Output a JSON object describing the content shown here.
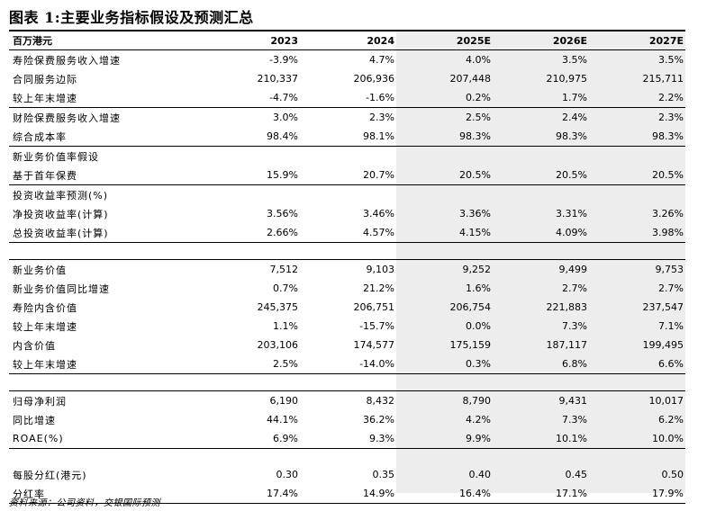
{
  "title": "图表 1:主要业务指标假设及预测汇总",
  "header": {
    "label": "百万港元",
    "years": [
      "2023",
      "2024",
      "2025E",
      "2026E",
      "2027E"
    ]
  },
  "rows": [
    {
      "label": "寿险保费服务收入增速",
      "values": [
        "-3.9%",
        "4.7%",
        "4.0%",
        "3.5%",
        "3.5%"
      ],
      "border": false
    },
    {
      "label": "合同服务边际",
      "values": [
        "210,337",
        "206,936",
        "207,448",
        "210,975",
        "215,711"
      ],
      "border": false
    },
    {
      "label": "较上年末增速",
      "values": [
        "-4.7%",
        "-1.6%",
        "0.2%",
        "1.7%",
        "2.2%"
      ],
      "border": false
    },
    {
      "label": "财险保费服务收入增速",
      "values": [
        "3.0%",
        "2.3%",
        "2.5%",
        "2.4%",
        "2.3%"
      ],
      "border": true
    },
    {
      "label": "综合成本率",
      "values": [
        "98.4%",
        "98.1%",
        "98.3%",
        "98.3%",
        "98.3%"
      ],
      "border": false
    },
    {
      "label": "新业务价值率假设",
      "values": [
        "",
        "",
        "",
        "",
        ""
      ],
      "border": true
    },
    {
      "label": "基于首年保费",
      "values": [
        "15.9%",
        "20.7%",
        "20.5%",
        "20.5%",
        "20.5%"
      ],
      "border": false
    },
    {
      "label": "投资收益率预测(%)",
      "values": [
        "",
        "",
        "",
        "",
        ""
      ],
      "border": true
    },
    {
      "label": "净投资收益率(计算)",
      "values": [
        "3.56%",
        "3.46%",
        "3.36%",
        "3.31%",
        "3.26%"
      ],
      "border": false
    },
    {
      "label": "总投资收益率(计算)",
      "values": [
        "2.66%",
        "4.57%",
        "4.15%",
        "4.09%",
        "3.98%"
      ],
      "border": false
    },
    {
      "label": "",
      "values": [
        "",
        "",
        "",
        "",
        ""
      ],
      "border": true,
      "spacer": true
    },
    {
      "label": "新业务价值",
      "values": [
        "7,512",
        "9,103",
        "9,252",
        "9,499",
        "9,753"
      ],
      "border": true
    },
    {
      "label": "新业务价值同比增速",
      "values": [
        "0.7%",
        "21.2%",
        "1.6%",
        "2.7%",
        "2.7%"
      ],
      "border": false
    },
    {
      "label": "寿险内含价值",
      "values": [
        "245,375",
        "206,751",
        "206,754",
        "221,883",
        "237,547"
      ],
      "border": false
    },
    {
      "label": "较上年末增速",
      "values": [
        "1.1%",
        "-15.7%",
        "0.0%",
        "7.3%",
        "7.1%"
      ],
      "border": false
    },
    {
      "label": "内含价值",
      "values": [
        "203,106",
        "174,577",
        "175,159",
        "187,117",
        "199,495"
      ],
      "border": false
    },
    {
      "label": "较上年末增速",
      "values": [
        "2.5%",
        "-14.0%",
        "0.3%",
        "6.8%",
        "6.6%"
      ],
      "border": false
    },
    {
      "label": "",
      "values": [
        "",
        "",
        "",
        "",
        ""
      ],
      "border": true,
      "spacer": true
    },
    {
      "label": "归母净利润",
      "values": [
        "6,190",
        "8,432",
        "8,790",
        "9,431",
        "10,017"
      ],
      "border": true
    },
    {
      "label": "同比增速",
      "values": [
        "44.1%",
        "36.2%",
        "4.2%",
        "7.3%",
        "6.2%"
      ],
      "border": false
    },
    {
      "label": "ROAE(%)",
      "values": [
        "6.9%",
        "9.3%",
        "9.9%",
        "10.1%",
        "10.0%"
      ],
      "border": false
    },
    {
      "label": "",
      "values": [
        "",
        "",
        "",
        "",
        ""
      ],
      "border": true,
      "spacer": true
    },
    {
      "label": "每股分红(港元)",
      "values": [
        "0.30",
        "0.35",
        "0.40",
        "0.45",
        "0.50"
      ],
      "border": false
    },
    {
      "label": "分红率",
      "values": [
        "17.4%",
        "14.9%",
        "16.4%",
        "17.1%",
        "17.9%"
      ],
      "border": false
    }
  ],
  "source": "资料来源：公司资料，交银国际预测"
}
